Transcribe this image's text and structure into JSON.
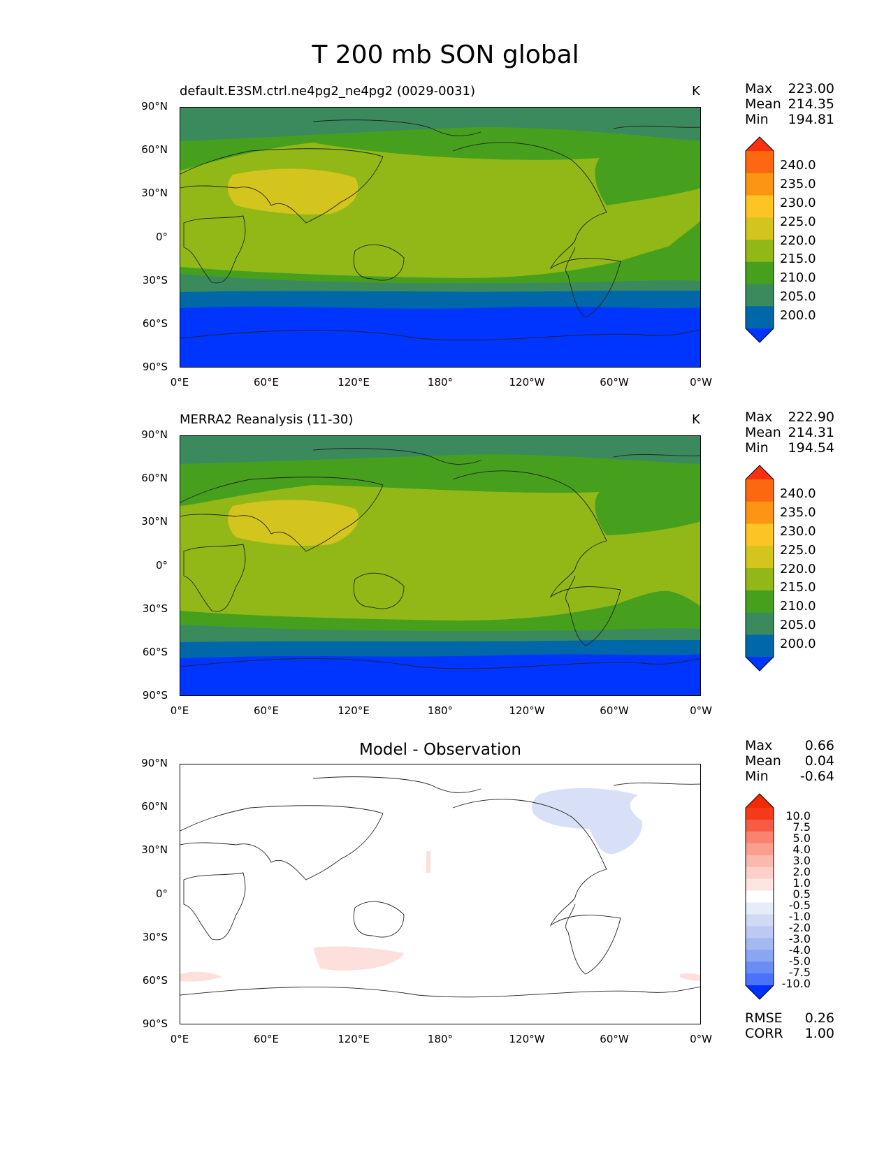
{
  "figure_title": "T 200 mb SON global",
  "units": "K",
  "lat_ticks": [
    "90°N",
    "60°N",
    "30°N",
    "0°",
    "30°S",
    "60°S",
    "90°S"
  ],
  "lon_ticks": [
    "0°E",
    "60°E",
    "120°E",
    "180°",
    "120°W",
    "60°W",
    "0°W"
  ],
  "panels": [
    {
      "title": "default.E3SM.ctrl.ne4pg2_ne4pg2 (0029-0031)",
      "units": "K",
      "stats": {
        "max_label": "Max",
        "max": "223.00",
        "mean_label": "Mean",
        "mean": "214.35",
        "min_label": "Min",
        "min": "194.81"
      },
      "colorbar_labels": [
        "240.0",
        "235.0",
        "230.0",
        "225.0",
        "220.0",
        "215.0",
        "210.0",
        "205.0",
        "200.0"
      ]
    },
    {
      "title": "MERRA2 Reanalysis (11-30)",
      "units": "K",
      "stats": {
        "max_label": "Max",
        "max": "222.90",
        "mean_label": "Mean",
        "mean": "214.31",
        "min_label": "Min",
        "min": "194.54"
      },
      "colorbar_labels": [
        "240.0",
        "235.0",
        "230.0",
        "225.0",
        "220.0",
        "215.0",
        "210.0",
        "205.0",
        "200.0"
      ]
    },
    {
      "title": "Model - Observation",
      "stats": {
        "max_label": "Max",
        "max": "0.66",
        "mean_label": "Mean",
        "mean": "0.04",
        "min_label": "Min",
        "min": "-0.64"
      },
      "colorbar_labels": [
        "10.0",
        "7.5",
        "5.0",
        "4.0",
        "3.0",
        "2.0",
        "1.0",
        "0.5",
        "-0.5",
        "-1.0",
        "-2.0",
        "-3.0",
        "-4.0",
        "-5.0",
        "-7.5",
        "-10.0"
      ],
      "rmse_label": "RMSE",
      "rmse": "0.26",
      "corr_label": "CORR",
      "corr": "1.00"
    }
  ],
  "colors": {
    "temp_levels": [
      "#0034ff",
      "#0068a8",
      "#3a8a5e",
      "#46a01e",
      "#92b818",
      "#d4c41e",
      "#fcc424",
      "#fc9414",
      "#fc6810",
      "#fc3010"
    ],
    "diff_levels": [
      "#0030ff",
      "#4a72fa",
      "#6a8cf5",
      "#8aa6f3",
      "#a4b8f2",
      "#bccaf3",
      "#d0daf5",
      "#e6ecfa",
      "#ffffff",
      "#fde6e2",
      "#fcd0c8",
      "#fbb8ac",
      "#fa9e8e",
      "#f88470",
      "#f65c44",
      "#f43a18",
      "#f22a00"
    ]
  }
}
